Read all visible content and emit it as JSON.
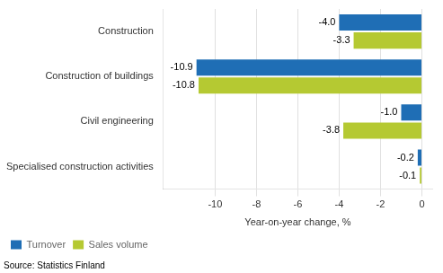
{
  "chart_data": {
    "type": "bar",
    "orientation": "horizontal",
    "categories": [
      "Specialised construction activities",
      "Civil engineering",
      "Construction of buildings",
      "Construction"
    ],
    "series": [
      {
        "name": "Turnover",
        "color": "#1f6eb5",
        "values": [
          -0.2,
          -1.0,
          -10.9,
          -4.0
        ],
        "value_labels": [
          "-0.2",
          "-1.0",
          "-10.9",
          "-4.0"
        ]
      },
      {
        "name": "Sales volume",
        "color": "#b5c932",
        "values": [
          -0.1,
          -3.8,
          -10.8,
          -3.3
        ],
        "value_labels": [
          "-0.1",
          "-3.8",
          "-10.8",
          "-3.3"
        ]
      }
    ],
    "xlabel": "Year-on-year change, %",
    "xlim": [
      -12.5,
      0.5
    ],
    "xticks": [
      -10,
      -8,
      -6,
      -4,
      -2,
      0
    ],
    "grid": true,
    "legend": "lower left",
    "data_labels": true,
    "annotations": [
      "Source: Statistics Finland"
    ]
  }
}
